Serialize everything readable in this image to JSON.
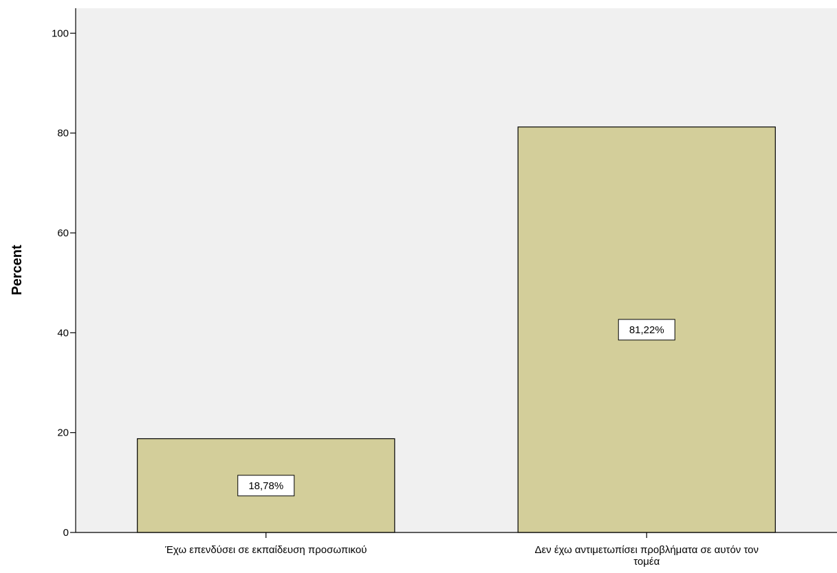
{
  "chart_data": {
    "type": "bar",
    "title": "",
    "xlabel": "",
    "ylabel": "Percent",
    "ylim": [
      0,
      105
    ],
    "yticks": [
      0,
      20,
      40,
      60,
      80,
      100
    ],
    "categories": [
      [
        "Έχω επενδύσει σε εκπαίδευση προσωπικού"
      ],
      [
        "Δεν έχω αντιμετωπίσει προβλήματα σε αυτόν τον",
        "τομέα"
      ]
    ],
    "values": [
      18.78,
      81.22
    ],
    "data_labels": [
      "18,78%",
      "81,22%"
    ],
    "grid": false,
    "legend": "none",
    "colors": {
      "plot_background": "#f0f0f0",
      "bar_fill": "#d3ce9a",
      "bar_stroke": "#000000",
      "label_box": "#ffffff"
    }
  }
}
